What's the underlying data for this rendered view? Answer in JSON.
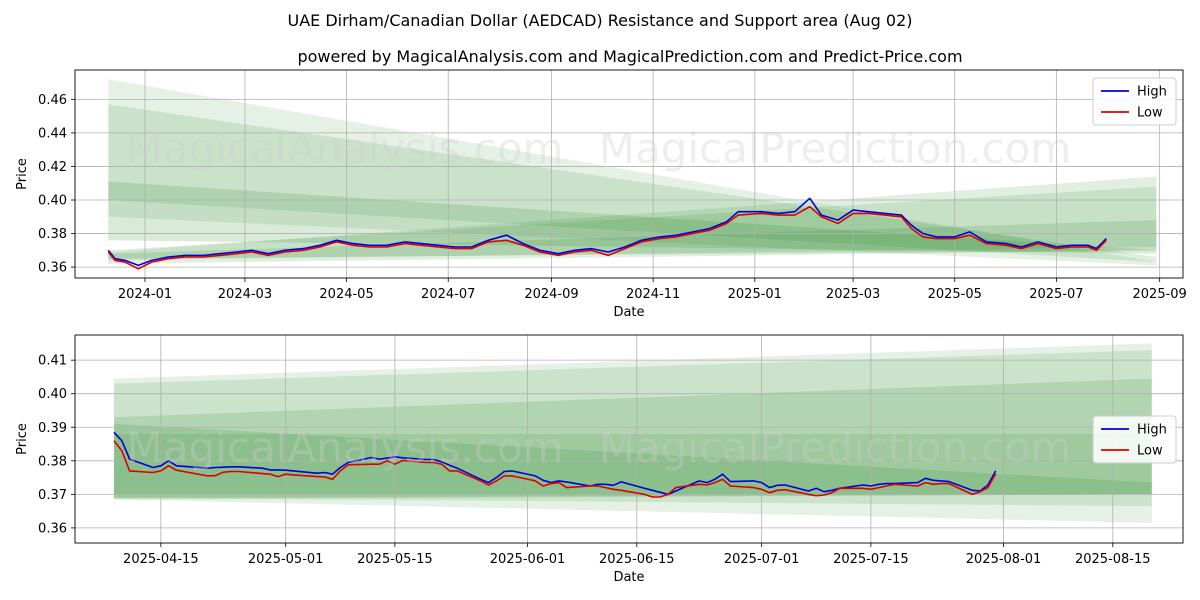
{
  "title": "UAE Dirham/Canadian Dollar (AEDCAD) Resistance and Support area (Aug 02)",
  "subtitle": "powered by MagicalAnalysis.com and MagicalPrediction.com and Predict-Price.com",
  "watermark": [
    "MagicalAnalysis.com",
    "MagicalPrediction.com"
  ],
  "colors": {
    "high": "#0000dd",
    "low": "#dd0000",
    "band": "#2e8b2e",
    "grid": "#b0b0b0"
  },
  "chart_data": [
    {
      "type": "line",
      "xlabel": "Date",
      "ylabel": "Price",
      "xlim": [
        "2023-11-20",
        "2025-09-15"
      ],
      "ylim": [
        0.3535,
        0.4775
      ],
      "xticks": [
        "2024-01-01",
        "2024-03-01",
        "2024-05-01",
        "2024-07-01",
        "2024-09-01",
        "2024-11-01",
        "2025-01-01",
        "2025-03-01",
        "2025-05-01",
        "2025-07-01",
        "2025-09-01"
      ],
      "xtick_labels": [
        "2024-01",
        "2024-03",
        "2024-05",
        "2024-07",
        "2024-09",
        "2024-11",
        "2025-01",
        "2025-03",
        "2025-05",
        "2025-07",
        "2025-09"
      ],
      "yticks": [
        0.36,
        0.38,
        0.4,
        0.42,
        0.44,
        0.46
      ],
      "ytick_labels": [
        "0.36",
        "0.38",
        "0.40",
        "0.42",
        "0.44",
        "0.46"
      ],
      "grid": true,
      "legend": "top-right",
      "bands": [
        {
          "x": [
            "2023-12-10",
            "2025-08-30"
          ],
          "top": [
            0.472,
            0.363
          ],
          "bottom": [
            0.39,
            0.361
          ],
          "opacity": 0.12
        },
        {
          "x": [
            "2023-12-10",
            "2025-08-30"
          ],
          "top": [
            0.457,
            0.366
          ],
          "bottom": [
            0.4,
            0.363
          ],
          "opacity": 0.15
        },
        {
          "x": [
            "2023-12-10",
            "2025-08-30"
          ],
          "top": [
            0.411,
            0.37
          ],
          "bottom": [
            0.376,
            0.368
          ],
          "opacity": 0.18
        },
        {
          "x": [
            "2023-12-10",
            "2025-08-30"
          ],
          "top": [
            0.369,
            0.414
          ],
          "bottom": [
            0.362,
            0.37
          ],
          "opacity": 0.14
        },
        {
          "x": [
            "2023-12-10",
            "2025-08-30"
          ],
          "top": [
            0.37,
            0.408
          ],
          "bottom": [
            0.364,
            0.372
          ],
          "opacity": 0.14
        },
        {
          "x": [
            "2023-12-10",
            "2025-08-30"
          ],
          "top": [
            0.368,
            0.388
          ],
          "bottom": [
            0.365,
            0.37
          ],
          "opacity": 0.16
        }
      ],
      "series": [
        {
          "name": "High",
          "color": "#0000dd",
          "x": [
            "2023-12-10",
            "2023-12-14",
            "2023-12-20",
            "2023-12-28",
            "2024-01-05",
            "2024-01-15",
            "2024-01-25",
            "2024-02-05",
            "2024-02-15",
            "2024-02-25",
            "2024-03-05",
            "2024-03-15",
            "2024-03-25",
            "2024-04-05",
            "2024-04-15",
            "2024-04-25",
            "2024-05-05",
            "2024-05-15",
            "2024-05-25",
            "2024-06-05",
            "2024-06-15",
            "2024-06-25",
            "2024-07-05",
            "2024-07-15",
            "2024-07-25",
            "2024-08-05",
            "2024-08-15",
            "2024-08-25",
            "2024-09-05",
            "2024-09-15",
            "2024-09-25",
            "2024-10-05",
            "2024-10-15",
            "2024-10-25",
            "2024-11-05",
            "2024-11-15",
            "2024-11-25",
            "2024-12-05",
            "2024-12-15",
            "2024-12-22",
            "2025-01-05",
            "2025-01-15",
            "2025-01-25",
            "2025-02-03",
            "2025-02-10",
            "2025-02-20",
            "2025-03-01",
            "2025-03-10",
            "2025-03-20",
            "2025-03-30",
            "2025-04-05",
            "2025-04-09",
            "2025-04-12",
            "2025-04-20",
            "2025-05-01",
            "2025-05-10",
            "2025-05-20",
            "2025-06-01",
            "2025-06-10",
            "2025-06-20",
            "2025-07-01",
            "2025-07-10",
            "2025-07-20",
            "2025-07-25",
            "2025-07-31"
          ],
          "y": [
            0.37,
            0.365,
            0.364,
            0.361,
            0.364,
            0.366,
            0.367,
            0.367,
            0.368,
            0.369,
            0.37,
            0.368,
            0.37,
            0.371,
            0.373,
            0.376,
            0.374,
            0.373,
            0.373,
            0.375,
            0.374,
            0.373,
            0.372,
            0.372,
            0.376,
            0.379,
            0.374,
            0.37,
            0.368,
            0.37,
            0.371,
            0.369,
            0.372,
            0.376,
            0.378,
            0.379,
            0.381,
            0.383,
            0.387,
            0.393,
            0.393,
            0.392,
            0.393,
            0.401,
            0.391,
            0.388,
            0.394,
            0.393,
            0.392,
            0.391,
            0.385,
            0.382,
            0.38,
            0.378,
            0.378,
            0.381,
            0.375,
            0.374,
            0.372,
            0.375,
            0.372,
            0.373,
            0.373,
            0.371,
            0.377
          ]
        },
        {
          "name": "Low",
          "color": "#dd0000",
          "x": [
            "2023-12-10",
            "2023-12-14",
            "2023-12-20",
            "2023-12-28",
            "2024-01-05",
            "2024-01-15",
            "2024-01-25",
            "2024-02-05",
            "2024-02-15",
            "2024-02-25",
            "2024-03-05",
            "2024-03-15",
            "2024-03-25",
            "2024-04-05",
            "2024-04-15",
            "2024-04-25",
            "2024-05-05",
            "2024-05-15",
            "2024-05-25",
            "2024-06-05",
            "2024-06-15",
            "2024-06-25",
            "2024-07-05",
            "2024-07-15",
            "2024-07-25",
            "2024-08-05",
            "2024-08-15",
            "2024-08-25",
            "2024-09-05",
            "2024-09-15",
            "2024-09-25",
            "2024-10-05",
            "2024-10-15",
            "2024-10-25",
            "2024-11-05",
            "2024-11-15",
            "2024-11-25",
            "2024-12-05",
            "2024-12-15",
            "2024-12-22",
            "2025-01-05",
            "2025-01-15",
            "2025-01-25",
            "2025-02-03",
            "2025-02-10",
            "2025-02-20",
            "2025-03-01",
            "2025-03-10",
            "2025-03-20",
            "2025-03-30",
            "2025-04-05",
            "2025-04-09",
            "2025-04-12",
            "2025-04-20",
            "2025-05-01",
            "2025-05-10",
            "2025-05-20",
            "2025-06-01",
            "2025-06-10",
            "2025-06-20",
            "2025-07-01",
            "2025-07-10",
            "2025-07-20",
            "2025-07-25",
            "2025-07-31"
          ],
          "y": [
            0.369,
            0.364,
            0.363,
            0.359,
            0.363,
            0.365,
            0.366,
            0.366,
            0.367,
            0.368,
            0.369,
            0.367,
            0.369,
            0.37,
            0.372,
            0.375,
            0.373,
            0.372,
            0.372,
            0.374,
            0.373,
            0.372,
            0.371,
            0.371,
            0.375,
            0.376,
            0.373,
            0.369,
            0.367,
            0.369,
            0.37,
            0.367,
            0.371,
            0.375,
            0.377,
            0.378,
            0.38,
            0.382,
            0.386,
            0.391,
            0.392,
            0.391,
            0.391,
            0.396,
            0.39,
            0.386,
            0.392,
            0.392,
            0.391,
            0.39,
            0.383,
            0.38,
            0.378,
            0.377,
            0.377,
            0.379,
            0.374,
            0.373,
            0.371,
            0.374,
            0.371,
            0.372,
            0.372,
            0.37,
            0.376
          ]
        }
      ]
    },
    {
      "type": "line",
      "xlabel": "Date",
      "ylabel": "Price",
      "xlim": [
        "2025-04-04",
        "2025-08-24"
      ],
      "ylim": [
        0.3555,
        0.4175
      ],
      "xticks": [
        "2025-04-15",
        "2025-05-01",
        "2025-05-15",
        "2025-06-01",
        "2025-06-15",
        "2025-07-01",
        "2025-07-15",
        "2025-08-01",
        "2025-08-15"
      ],
      "xtick_labels": [
        "2025-04-15",
        "2025-05-01",
        "2025-05-15",
        "2025-06-01",
        "2025-06-15",
        "2025-07-01",
        "2025-07-15",
        "2025-08-01",
        "2025-08-15"
      ],
      "yticks": [
        0.36,
        0.37,
        0.38,
        0.39,
        0.4,
        0.41
      ],
      "ytick_labels": [
        "0.36",
        "0.37",
        "0.38",
        "0.39",
        "0.40",
        "0.41"
      ],
      "grid": true,
      "legend": "center-right",
      "bands": [
        {
          "x": [
            "2025-04-09",
            "2025-08-20"
          ],
          "top": [
            0.4045,
            0.415
          ],
          "bottom": [
            0.3685,
            0.3615
          ],
          "opacity": 0.12
        },
        {
          "x": [
            "2025-04-09",
            "2025-08-20"
          ],
          "top": [
            0.403,
            0.413
          ],
          "bottom": [
            0.369,
            0.3665
          ],
          "opacity": 0.14
        },
        {
          "x": [
            "2025-04-09",
            "2025-08-20"
          ],
          "top": [
            0.393,
            0.4045
          ],
          "bottom": [
            0.3685,
            0.37
          ],
          "opacity": 0.16
        },
        {
          "x": [
            "2025-04-09",
            "2025-08-20"
          ],
          "top": [
            0.391,
            0.3735
          ],
          "bottom": [
            0.369,
            0.37
          ],
          "opacity": 0.16
        },
        {
          "x": [
            "2025-04-09",
            "2025-08-20"
          ],
          "top": [
            0.388,
            0.388
          ],
          "bottom": [
            0.37,
            0.37
          ],
          "opacity": 0.14
        }
      ],
      "series": [
        {
          "name": "High",
          "color": "#0000dd",
          "x": [
            "2025-04-09",
            "2025-04-10",
            "2025-04-11",
            "2025-04-14",
            "2025-04-15",
            "2025-04-16",
            "2025-04-17",
            "2025-04-21",
            "2025-04-22",
            "2025-04-23",
            "2025-04-24",
            "2025-04-25",
            "2025-04-28",
            "2025-04-29",
            "2025-04-30",
            "2025-05-01",
            "2025-05-02",
            "2025-05-05",
            "2025-05-06",
            "2025-05-07",
            "2025-05-08",
            "2025-05-09",
            "2025-05-12",
            "2025-05-13",
            "2025-05-14",
            "2025-05-15",
            "2025-05-16",
            "2025-05-19",
            "2025-05-20",
            "2025-05-21",
            "2025-05-22",
            "2025-05-23",
            "2025-05-26",
            "2025-05-27",
            "2025-05-28",
            "2025-05-29",
            "2025-05-30",
            "2025-06-02",
            "2025-06-03",
            "2025-06-04",
            "2025-06-05",
            "2025-06-06",
            "2025-06-09",
            "2025-06-10",
            "2025-06-11",
            "2025-06-12",
            "2025-06-13",
            "2025-06-16",
            "2025-06-17",
            "2025-06-18",
            "2025-06-19",
            "2025-06-20",
            "2025-06-23",
            "2025-06-24",
            "2025-06-25",
            "2025-06-26",
            "2025-06-27",
            "2025-06-30",
            "2025-07-01",
            "2025-07-02",
            "2025-07-03",
            "2025-07-04",
            "2025-07-07",
            "2025-07-08",
            "2025-07-09",
            "2025-07-10",
            "2025-07-11",
            "2025-07-14",
            "2025-07-15",
            "2025-07-16",
            "2025-07-17",
            "2025-07-18",
            "2025-07-21",
            "2025-07-22",
            "2025-07-23",
            "2025-07-24",
            "2025-07-25",
            "2025-07-28",
            "2025-07-29",
            "2025-07-30",
            "2025-07-31"
          ],
          "y": [
            0.3885,
            0.386,
            0.3805,
            0.378,
            0.3785,
            0.38,
            0.3785,
            0.3778,
            0.378,
            0.3781,
            0.3782,
            0.3782,
            0.3778,
            0.3773,
            0.3773,
            0.3772,
            0.377,
            0.3763,
            0.3765,
            0.376,
            0.378,
            0.3795,
            0.381,
            0.3805,
            0.3808,
            0.3812,
            0.3809,
            0.3804,
            0.3804,
            0.3797,
            0.3787,
            0.3778,
            0.3745,
            0.3735,
            0.375,
            0.3768,
            0.377,
            0.3755,
            0.3742,
            0.3735,
            0.374,
            0.3737,
            0.3725,
            0.373,
            0.373,
            0.3727,
            0.3737,
            0.3718,
            0.3712,
            0.3706,
            0.37,
            0.371,
            0.374,
            0.3735,
            0.3745,
            0.376,
            0.3738,
            0.374,
            0.3735,
            0.372,
            0.3727,
            0.3728,
            0.371,
            0.3718,
            0.3708,
            0.3712,
            0.3718,
            0.3728,
            0.3725,
            0.373,
            0.3732,
            0.3732,
            0.3735,
            0.3748,
            0.3742,
            0.374,
            0.3738,
            0.3712,
            0.371,
            0.3728,
            0.377
          ]
        },
        {
          "name": "Low",
          "color": "#dd0000",
          "x": [
            "2025-04-09",
            "2025-04-10",
            "2025-04-11",
            "2025-04-14",
            "2025-04-15",
            "2025-04-16",
            "2025-04-17",
            "2025-04-21",
            "2025-04-22",
            "2025-04-23",
            "2025-04-24",
            "2025-04-25",
            "2025-04-28",
            "2025-04-29",
            "2025-04-30",
            "2025-05-01",
            "2025-05-02",
            "2025-05-05",
            "2025-05-06",
            "2025-05-07",
            "2025-05-08",
            "2025-05-09",
            "2025-05-12",
            "2025-05-13",
            "2025-05-14",
            "2025-05-15",
            "2025-05-16",
            "2025-05-19",
            "2025-05-20",
            "2025-05-21",
            "2025-05-22",
            "2025-05-23",
            "2025-05-26",
            "2025-05-27",
            "2025-05-28",
            "2025-05-29",
            "2025-05-30",
            "2025-06-02",
            "2025-06-03",
            "2025-06-04",
            "2025-06-05",
            "2025-06-06",
            "2025-06-09",
            "2025-06-10",
            "2025-06-11",
            "2025-06-12",
            "2025-06-13",
            "2025-06-16",
            "2025-06-17",
            "2025-06-18",
            "2025-06-19",
            "2025-06-20",
            "2025-06-23",
            "2025-06-24",
            "2025-06-25",
            "2025-06-26",
            "2025-06-27",
            "2025-06-30",
            "2025-07-01",
            "2025-07-02",
            "2025-07-03",
            "2025-07-04",
            "2025-07-07",
            "2025-07-08",
            "2025-07-09",
            "2025-07-10",
            "2025-07-11",
            "2025-07-14",
            "2025-07-15",
            "2025-07-16",
            "2025-07-17",
            "2025-07-18",
            "2025-07-21",
            "2025-07-22",
            "2025-07-23",
            "2025-07-24",
            "2025-07-25",
            "2025-07-28",
            "2025-07-29",
            "2025-07-30",
            "2025-07-31"
          ],
          "y": [
            0.386,
            0.383,
            0.377,
            0.3765,
            0.377,
            0.3785,
            0.3772,
            0.3755,
            0.3756,
            0.3766,
            0.3768,
            0.3768,
            0.3762,
            0.376,
            0.3753,
            0.376,
            0.3758,
            0.3753,
            0.3752,
            0.3745,
            0.377,
            0.3788,
            0.379,
            0.379,
            0.38,
            0.379,
            0.3801,
            0.3795,
            0.3795,
            0.379,
            0.377,
            0.377,
            0.374,
            0.3728,
            0.374,
            0.3755,
            0.3755,
            0.374,
            0.3725,
            0.3732,
            0.3735,
            0.372,
            0.3725,
            0.3725,
            0.372,
            0.3715,
            0.3712,
            0.37,
            0.3692,
            0.3692,
            0.37,
            0.372,
            0.373,
            0.3728,
            0.3735,
            0.3745,
            0.3725,
            0.372,
            0.3715,
            0.3705,
            0.3712,
            0.3714,
            0.37,
            0.3696,
            0.3698,
            0.3705,
            0.3718,
            0.3718,
            0.3715,
            0.372,
            0.3725,
            0.373,
            0.3725,
            0.3735,
            0.373,
            0.3732,
            0.3732,
            0.37,
            0.3708,
            0.372,
            0.3762
          ]
        }
      ]
    }
  ]
}
